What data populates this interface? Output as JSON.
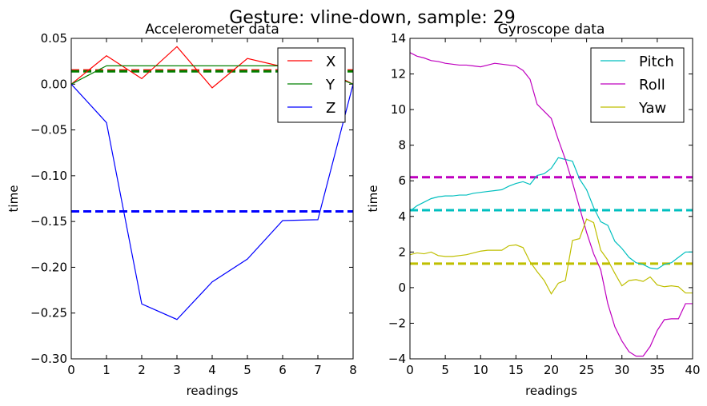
{
  "suptitle": "Gesture: vline-down, sample: 29",
  "chart_data": [
    {
      "type": "line",
      "title": "Accelerometer data",
      "xlabel": "readings",
      "ylabel": "time",
      "xlim": [
        0,
        8
      ],
      "ylim": [
        -0.3,
        0.05
      ],
      "xticks": [
        "0",
        "1",
        "2",
        "3",
        "4",
        "5",
        "6",
        "7",
        "8"
      ],
      "yticks": [
        "0.05",
        "0.00",
        "−0.05",
        "−0.10",
        "−0.15",
        "−0.20",
        "−0.25",
        "−0.30"
      ],
      "legend_position": "top-right",
      "x": [
        0,
        1,
        2,
        3,
        4,
        5,
        6,
        7,
        8
      ],
      "series": [
        {
          "name": "X",
          "color": "#ff0000",
          "values": [
            0.0,
            0.031,
            0.006,
            0.041,
            -0.004,
            0.028,
            0.019,
            0.019,
            0.0
          ],
          "mean": 0.015
        },
        {
          "name": "Y",
          "color": "#008000",
          "values": [
            0.0,
            0.02,
            0.02,
            0.02,
            0.02,
            0.02,
            0.02,
            0.015,
            0.0
          ],
          "mean": 0.014
        },
        {
          "name": "Z",
          "color": "#0000ff",
          "values": [
            0.0,
            -0.042,
            -0.24,
            -0.257,
            -0.216,
            -0.191,
            -0.149,
            -0.148,
            0.0
          ],
          "mean": -0.139
        }
      ]
    },
    {
      "type": "line",
      "title": "Gyroscope data",
      "xlabel": "readings",
      "ylabel": "time",
      "xlim": [
        0,
        40
      ],
      "ylim": [
        -4,
        14
      ],
      "xticks": [
        "0",
        "5",
        "10",
        "15",
        "20",
        "25",
        "30",
        "35",
        "40"
      ],
      "yticks": [
        "14",
        "12",
        "10",
        "8",
        "6",
        "4",
        "2",
        "0",
        "−2",
        "−4"
      ],
      "legend_position": "top-right",
      "x": [
        0,
        1,
        2,
        3,
        4,
        5,
        6,
        7,
        8,
        9,
        10,
        11,
        12,
        13,
        14,
        15,
        16,
        17,
        18,
        19,
        20,
        21,
        22,
        23,
        24,
        25,
        26,
        27,
        28,
        29,
        30,
        31,
        32,
        33,
        34,
        35,
        36,
        37,
        38,
        39,
        40
      ],
      "series": [
        {
          "name": "Pitch",
          "color": "#00bfbf",
          "mean": 4.35,
          "values": [
            4.3,
            4.6,
            4.8,
            5.0,
            5.1,
            5.15,
            5.15,
            5.2,
            5.2,
            5.3,
            5.35,
            5.4,
            5.45,
            5.5,
            5.7,
            5.85,
            5.95,
            5.8,
            6.3,
            6.4,
            6.7,
            7.3,
            7.2,
            7.1,
            6.1,
            5.5,
            4.5,
            3.7,
            3.5,
            2.6,
            2.2,
            1.7,
            1.4,
            1.3,
            1.1,
            1.05,
            1.3,
            1.4,
            1.7,
            2.0,
            2.0
          ]
        },
        {
          "name": "Roll",
          "color": "#bf00bf",
          "mean": 6.2,
          "values": [
            13.2,
            13.0,
            12.9,
            12.75,
            12.7,
            12.6,
            12.55,
            12.5,
            12.5,
            12.45,
            12.4,
            12.5,
            12.6,
            12.55,
            12.5,
            12.45,
            12.2,
            11.7,
            10.3,
            9.9,
            9.5,
            8.3,
            7.2,
            5.9,
            4.5,
            3.1,
            1.9,
            1.0,
            -0.9,
            -2.2,
            -3.0,
            -3.6,
            -3.85,
            -3.85,
            -3.3,
            -2.4,
            -1.8,
            -1.75,
            -1.75,
            -0.9,
            -0.9
          ]
        },
        {
          "name": "Yaw",
          "color": "#bfbf00",
          "mean": 1.35,
          "values": [
            1.85,
            1.95,
            1.9,
            2.0,
            1.8,
            1.75,
            1.75,
            1.8,
            1.85,
            1.95,
            2.05,
            2.1,
            2.1,
            2.1,
            2.35,
            2.4,
            2.25,
            1.45,
            0.9,
            0.4,
            -0.35,
            0.25,
            0.4,
            2.65,
            2.75,
            3.85,
            3.65,
            2.1,
            1.55,
            0.8,
            0.1,
            0.4,
            0.45,
            0.35,
            0.6,
            0.15,
            0.05,
            0.1,
            0.05,
            -0.3,
            -0.3
          ]
        }
      ]
    }
  ]
}
